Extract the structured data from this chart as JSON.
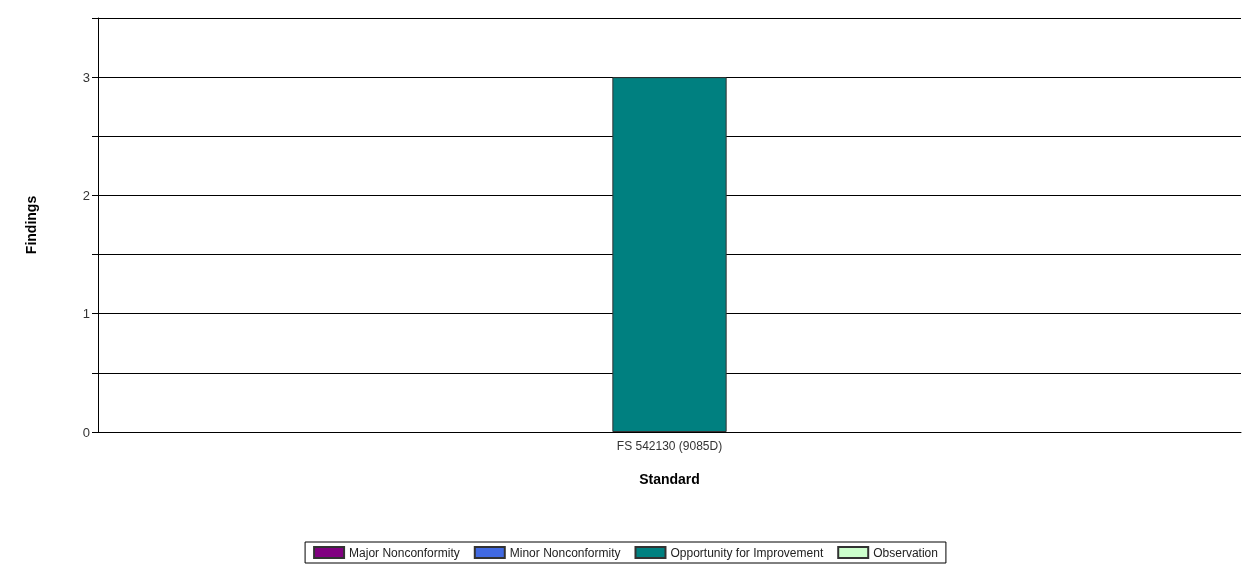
{
  "chart_data": {
    "type": "bar",
    "stacked": true,
    "xlabel": "Standard",
    "ylabel": "Findings",
    "categories": [
      "FS 542130 (9085D)"
    ],
    "series": [
      {
        "name": "Major Nonconformity",
        "color": "#800080",
        "values": [
          0
        ]
      },
      {
        "name": "Minor Nonconformity",
        "color": "#4169e1",
        "values": [
          0
        ]
      },
      {
        "name": "Opportunity for Improvement",
        "color": "#008080",
        "values": [
          3
        ]
      },
      {
        "name": "Observation",
        "color": "#ccffcc",
        "values": [
          0
        ]
      }
    ],
    "ylim": [
      0,
      3.5
    ],
    "yticks": [
      0,
      {
        "value": 0.5,
        "label": null
      },
      1,
      {
        "value": 1.5,
        "label": null
      },
      2,
      {
        "value": 2.5,
        "label": null
      },
      3,
      {
        "value": 3.5,
        "label": null
      }
    ],
    "grid": "y",
    "legend": "bottom"
  }
}
